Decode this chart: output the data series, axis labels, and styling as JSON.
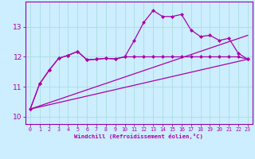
{
  "xlabel": "Windchill (Refroidissement éolien,°C)",
  "background_color": "#cceeff",
  "grid_color": "#aadddd",
  "line_color": "#aa00aa",
  "spine_color": "#9900aa",
  "xlim": [
    -0.5,
    23.5
  ],
  "ylim": [
    9.75,
    13.85
  ],
  "xticks": [
    0,
    1,
    2,
    3,
    4,
    5,
    6,
    7,
    8,
    9,
    10,
    11,
    12,
    13,
    14,
    15,
    16,
    17,
    18,
    19,
    20,
    21,
    22,
    23
  ],
  "yticks": [
    10,
    11,
    12,
    13
  ],
  "line1_x": [
    0,
    1,
    2,
    3,
    4,
    5,
    6,
    7,
    8,
    9,
    10,
    11,
    12,
    13,
    14,
    15,
    16,
    17,
    18,
    19,
    20,
    21,
    22,
    23
  ],
  "line1_y": [
    10.25,
    11.1,
    11.55,
    11.95,
    12.05,
    12.18,
    11.9,
    11.92,
    11.95,
    11.93,
    12.0,
    12.55,
    13.15,
    13.55,
    13.35,
    13.35,
    13.42,
    12.9,
    12.68,
    12.72,
    12.55,
    12.62,
    12.12,
    11.92
  ],
  "line2_x": [
    0,
    1,
    2,
    3,
    4,
    5,
    6,
    7,
    8,
    9,
    10,
    11,
    12,
    13,
    14,
    15,
    16,
    17,
    18,
    19,
    20,
    21,
    22,
    23
  ],
  "line2_y": [
    10.25,
    11.1,
    11.55,
    11.95,
    12.05,
    12.18,
    11.9,
    11.92,
    11.95,
    11.93,
    12.0,
    12.0,
    12.0,
    12.0,
    12.0,
    12.0,
    12.0,
    12.0,
    12.0,
    12.0,
    12.0,
    12.0,
    12.0,
    11.92
  ],
  "line3_x": [
    0,
    23
  ],
  "line3_y": [
    10.25,
    11.92
  ],
  "line4_x": [
    0,
    23
  ],
  "line4_y": [
    10.25,
    12.72
  ]
}
